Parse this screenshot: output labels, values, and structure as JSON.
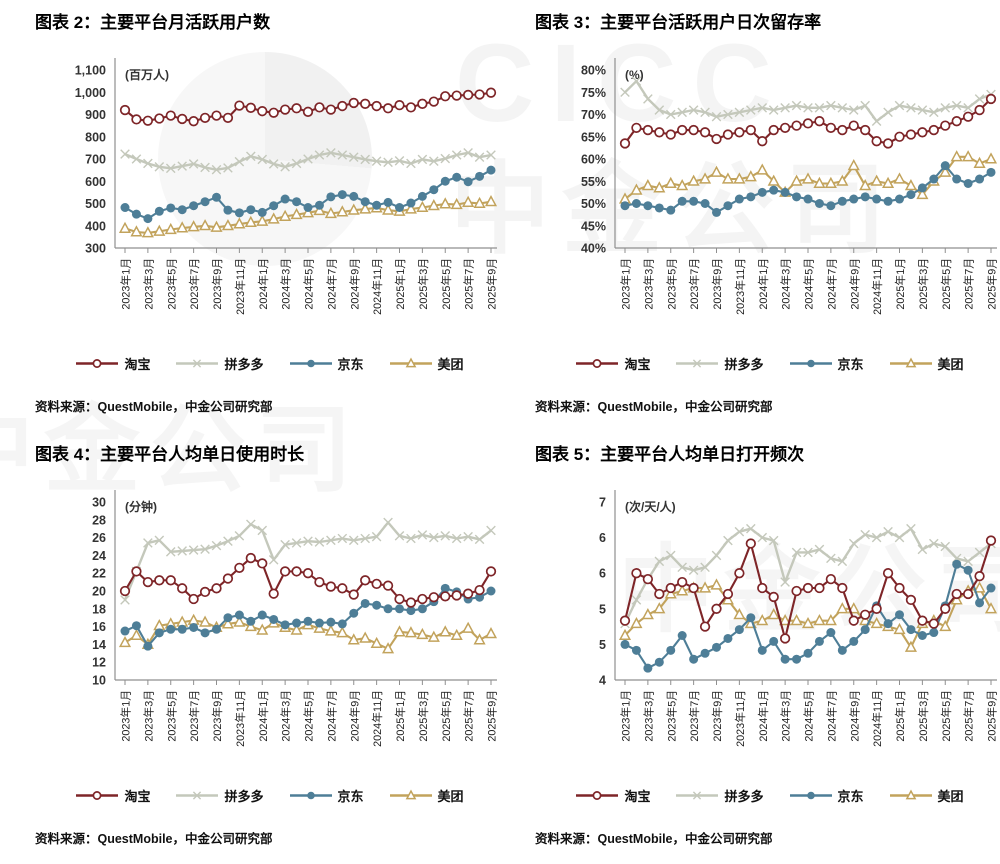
{
  "watermark": {
    "cicc": "CICC",
    "cn": "中金公司",
    "cn2": "中金公司",
    "cn3": "中金公司"
  },
  "source_note": "资料来源：QuestMobile，中金公司研究部",
  "chart_data": [
    {
      "type": "line",
      "title": "图表 2：主要平台月活跃用户数",
      "unit": "(百万人)",
      "source": "资料来源：QuestMobile，中金公司研究部",
      "ylim": [
        300,
        1100
      ],
      "grid": false,
      "legend_position": "bottom",
      "n_points": 33,
      "x_range": "2023年1月 - 2025年9月 (monthly)",
      "x_tick_labels": [
        "2023年1月",
        "2023年3月",
        "2023年5月",
        "2023年7月",
        "2023年9月",
        "2023年11月",
        "2024年1月",
        "2024年3月",
        "2024年5月",
        "2024年7月",
        "2024年9月",
        "2024年11月",
        "2025年1月",
        "2025年3月",
        "2025年5月",
        "2025年7月",
        "2025年9月"
      ],
      "yticks": [
        {
          "v": 300,
          "label": "300"
        },
        {
          "v": 400,
          "label": "400"
        },
        {
          "v": 500,
          "label": "500"
        },
        {
          "v": 600,
          "label": "600"
        },
        {
          "v": 700,
          "label": "700"
        },
        {
          "v": 800,
          "label": "800"
        },
        {
          "v": 900,
          "label": "900"
        },
        {
          "v": 1000,
          "label": "1,000"
        },
        {
          "v": 1100,
          "label": "1,100"
        }
      ],
      "series": [
        {
          "key": "taobao",
          "name": "淘宝",
          "color": "#7E2528",
          "marker": "circle-open",
          "values": [
            920,
            878,
            872,
            882,
            895,
            880,
            870,
            885,
            895,
            885,
            940,
            930,
            915,
            908,
            922,
            928,
            912,
            932,
            922,
            938,
            952,
            948,
            938,
            928,
            942,
            932,
            948,
            958,
            982,
            985,
            988,
            990,
            998
          ]
        },
        {
          "key": "pdd",
          "name": "拼多多",
          "color": "#C4C8BB",
          "marker": "x",
          "values": [
            722,
            700,
            680,
            665,
            658,
            668,
            678,
            662,
            652,
            660,
            688,
            712,
            698,
            678,
            665,
            680,
            700,
            718,
            728,
            718,
            708,
            698,
            690,
            685,
            692,
            680,
            698,
            690,
            702,
            718,
            728,
            708,
            718
          ]
        },
        {
          "key": "jd",
          "name": "京东",
          "color": "#4E7E97",
          "marker": "circle-filled",
          "values": [
            482,
            452,
            432,
            465,
            480,
            472,
            490,
            508,
            528,
            470,
            458,
            472,
            460,
            490,
            520,
            508,
            482,
            492,
            530,
            540,
            532,
            508,
            492,
            505,
            482,
            502,
            532,
            562,
            600,
            618,
            598,
            622,
            650
          ]
        },
        {
          "key": "meituan",
          "name": "美团",
          "color": "#C2A35C",
          "marker": "triangle-open",
          "values": [
            388,
            372,
            368,
            375,
            383,
            390,
            395,
            400,
            393,
            400,
            408,
            415,
            420,
            430,
            442,
            450,
            458,
            468,
            455,
            462,
            470,
            475,
            480,
            470,
            465,
            475,
            482,
            490,
            498,
            495,
            505,
            500,
            508
          ]
        }
      ]
    },
    {
      "type": "line",
      "title": "图表 3：主要平台活跃用户日次留存率",
      "unit": "(%)",
      "source": "资料来源：QuestMobile，中金公司研究部",
      "ylim": [
        40,
        80
      ],
      "grid": false,
      "legend_position": "bottom",
      "n_points": 33,
      "x_range": "2023年1月 - 2025年9月 (monthly)",
      "x_tick_labels": [
        "2023年1月",
        "2023年3月",
        "2023年5月",
        "2023年7月",
        "2023年9月",
        "2023年11月",
        "2024年1月",
        "2024年3月",
        "2024年5月",
        "2024年7月",
        "2024年9月",
        "2024年11月",
        "2025年1月",
        "2025年3月",
        "2025年5月",
        "2025年7月",
        "2025年9月"
      ],
      "yticks": [
        {
          "v": 40,
          "label": "40%"
        },
        {
          "v": 45,
          "label": "45%"
        },
        {
          "v": 50,
          "label": "50%"
        },
        {
          "v": 55,
          "label": "55%"
        },
        {
          "v": 60,
          "label": "60%"
        },
        {
          "v": 65,
          "label": "65%"
        },
        {
          "v": 70,
          "label": "70%"
        },
        {
          "v": 75,
          "label": "75%"
        },
        {
          "v": 80,
          "label": "80%"
        }
      ],
      "series": [
        {
          "key": "taobao",
          "name": "淘宝",
          "color": "#7E2528",
          "marker": "circle-open",
          "values": [
            63.5,
            67,
            66.5,
            66,
            65.5,
            66.5,
            66.5,
            66,
            64.5,
            65.5,
            66,
            66.5,
            64,
            66.5,
            67,
            67.5,
            68,
            68.5,
            67,
            66.5,
            67.5,
            66.5,
            64,
            63.5,
            65,
            65.5,
            66,
            66.5,
            67.5,
            68.5,
            69.5,
            71,
            73.5
          ]
        },
        {
          "key": "pdd",
          "name": "拼多多",
          "color": "#C4C8BB",
          "marker": "x",
          "values": [
            75,
            77.5,
            73.5,
            71,
            70,
            70.5,
            71,
            70.5,
            69.5,
            70,
            70.5,
            71,
            71.5,
            71,
            71.5,
            72,
            71.5,
            71.5,
            72,
            71.5,
            71,
            72,
            68.5,
            70.5,
            72,
            71.5,
            71,
            70.5,
            71.5,
            72,
            71.5,
            73.5,
            74.5
          ]
        },
        {
          "key": "jd",
          "name": "京东",
          "color": "#4E7E97",
          "marker": "circle-filled",
          "values": [
            49.5,
            50,
            49.5,
            49,
            48.5,
            50.5,
            50.5,
            50,
            48,
            49.5,
            51,
            51.5,
            52.5,
            53,
            52.5,
            51.5,
            51,
            50,
            49.5,
            50.5,
            51,
            51.5,
            51,
            50.5,
            51,
            52,
            53.5,
            55.5,
            58.5,
            55.5,
            54.5,
            55.5,
            57
          ]
        },
        {
          "key": "meituan",
          "name": "美团",
          "color": "#C2A35C",
          "marker": "triangle-open",
          "values": [
            51,
            53,
            54,
            53.5,
            54.5,
            54,
            55,
            55.5,
            57,
            55.5,
            55.5,
            56,
            57.5,
            55,
            52.5,
            55,
            55.5,
            54.5,
            54.5,
            55,
            58.5,
            54,
            55,
            54.5,
            55.5,
            54,
            52,
            55,
            57,
            60.5,
            60.5,
            59,
            60
          ]
        }
      ]
    },
    {
      "type": "line",
      "title": "图表 4：主要平台人均单日使用时长",
      "unit": "(分钟)",
      "source": "资料来源：QuestMobile，中金公司研究部",
      "ylim": [
        10,
        30
      ],
      "grid": false,
      "legend_position": "bottom",
      "n_points": 33,
      "x_range": "2023年1月 - 2025年9月 (monthly)",
      "x_tick_labels": [
        "2023年1月",
        "2023年3月",
        "2023年5月",
        "2023年7月",
        "2023年9月",
        "2023年11月",
        "2024年1月",
        "2024年3月",
        "2024年5月",
        "2024年7月",
        "2024年9月",
        "2024年11月",
        "2025年1月",
        "2025年3月",
        "2025年5月",
        "2025年7月",
        "2025年9月"
      ],
      "yticks": [
        {
          "v": 10,
          "label": "10"
        },
        {
          "v": 12,
          "label": "12"
        },
        {
          "v": 14,
          "label": "14"
        },
        {
          "v": 16,
          "label": "16"
        },
        {
          "v": 18,
          "label": "18"
        },
        {
          "v": 20,
          "label": "20"
        },
        {
          "v": 22,
          "label": "22"
        },
        {
          "v": 24,
          "label": "24"
        },
        {
          "v": 26,
          "label": "26"
        },
        {
          "v": 28,
          "label": "28"
        },
        {
          "v": 30,
          "label": "30"
        }
      ],
      "series": [
        {
          "key": "taobao",
          "name": "淘宝",
          "color": "#7E2528",
          "marker": "circle-open",
          "values": [
            20,
            22.2,
            21,
            21.2,
            21.2,
            20.3,
            19.1,
            19.9,
            20.3,
            21.4,
            22.6,
            23.7,
            23.1,
            19.7,
            22.2,
            22.2,
            22,
            21,
            20.5,
            20.3,
            19.6,
            21.2,
            20.8,
            20.6,
            19.1,
            18.7,
            19.1,
            19.3,
            19.4,
            19.5,
            19.7,
            20.1,
            22.2
          ]
        },
        {
          "key": "pdd",
          "name": "拼多多",
          "color": "#C4C8BB",
          "marker": "x",
          "values": [
            19,
            22.2,
            25.4,
            25.7,
            24.4,
            24.5,
            24.6,
            24.7,
            25.1,
            25.6,
            26.2,
            27.5,
            26.8,
            23.5,
            25.2,
            25.4,
            25.6,
            25.5,
            25.7,
            25.9,
            25.7,
            25.9,
            26.1,
            27.7,
            26.2,
            25.9,
            26.3,
            26,
            26.2,
            25.9,
            26.1,
            25.8,
            26.8
          ]
        },
        {
          "key": "jd",
          "name": "京东",
          "color": "#4E7E97",
          "marker": "circle-filled",
          "values": [
            15.5,
            16.1,
            13.8,
            15.3,
            15.7,
            15.7,
            15.9,
            15.3,
            15.7,
            17,
            17.3,
            16.6,
            17.3,
            16.8,
            16.2,
            16.4,
            16.6,
            16.4,
            16.5,
            16.3,
            17.5,
            18.6,
            18.4,
            18,
            18,
            17.8,
            18,
            18.8,
            20.3,
            19.9,
            19.1,
            19.3,
            20
          ]
        },
        {
          "key": "meituan",
          "name": "美团",
          "color": "#C2A35C",
          "marker": "triangle-open",
          "values": [
            14.2,
            15,
            14,
            16.1,
            16.3,
            16.5,
            16.7,
            16.5,
            15.9,
            16.3,
            16.5,
            16,
            15.6,
            16.4,
            15.9,
            15.6,
            16.2,
            15.8,
            15.5,
            15.3,
            14.5,
            14.7,
            14.1,
            13.5,
            15.4,
            15.3,
            15.1,
            14.8,
            15.4,
            15,
            15.8,
            14.5,
            15.2
          ]
        }
      ]
    },
    {
      "type": "line",
      "title": "图表 5：主要平台人均单日打开频次",
      "unit": "(次/天/人)",
      "source": "资料来源：QuestMobile，中金公司研究部",
      "ylim": [
        4,
        7
      ],
      "grid": false,
      "legend_position": "bottom",
      "n_points": 33,
      "x_range": "2023年1月 - 2025年9月 (monthly)",
      "x_tick_labels": [
        "2023年1月",
        "2023年3月",
        "2023年5月",
        "2023年7月",
        "2023年9月",
        "2023年11月",
        "2024年1月",
        "2024年3月",
        "2024年5月",
        "2024年7月",
        "2024年9月",
        "2024年11月",
        "2025年1月",
        "2025年3月",
        "2025年5月",
        "2025年7月",
        "2025年9月"
      ],
      "yticks": [
        {
          "v": 4,
          "label": "4"
        },
        {
          "v": 4.6,
          "label": "5"
        },
        {
          "v": 5.2,
          "label": "5"
        },
        {
          "v": 5.8,
          "label": "6"
        },
        {
          "v": 6.4,
          "label": "6"
        },
        {
          "v": 7,
          "label": "7"
        }
      ],
      "series": [
        {
          "key": "taobao",
          "name": "淘宝",
          "color": "#7E2528",
          "marker": "circle-open",
          "values": [
            5,
            5.8,
            5.7,
            5.45,
            5.55,
            5.65,
            5.55,
            4.9,
            5.2,
            5.45,
            5.8,
            6.3,
            5.55,
            5.4,
            4.7,
            5.5,
            5.55,
            5.55,
            5.7,
            5.55,
            5,
            5.1,
            5.2,
            5.8,
            5.55,
            5.35,
            5,
            4.95,
            5.2,
            5.45,
            5.45,
            5.75,
            6.35
          ]
        },
        {
          "key": "pdd",
          "name": "拼多多",
          "color": "#C4C8BB",
          "marker": "x",
          "values": [
            4.95,
            5.35,
            5.7,
            6,
            6.1,
            5.9,
            5.85,
            5.9,
            6.1,
            6.35,
            6.5,
            6.55,
            6.4,
            6.35,
            5.65,
            6.15,
            6.15,
            6.2,
            6.05,
            6,
            6.3,
            6.45,
            6.4,
            6.5,
            6.4,
            6.55,
            6.2,
            6.3,
            6.25,
            6.05,
            6,
            6.15,
            6.3
          ]
        },
        {
          "key": "jd",
          "name": "京东",
          "color": "#4E7E97",
          "marker": "circle-filled",
          "values": [
            4.6,
            4.5,
            4.2,
            4.3,
            4.5,
            4.75,
            4.35,
            4.45,
            4.55,
            4.7,
            4.85,
            5.05,
            4.5,
            4.65,
            4.35,
            4.35,
            4.45,
            4.65,
            4.8,
            4.5,
            4.65,
            4.85,
            5.25,
            4.95,
            5.1,
            4.85,
            4.75,
            4.8,
            5.25,
            5.95,
            5.85,
            5.3,
            5.55
          ]
        },
        {
          "key": "meituan",
          "name": "美团",
          "color": "#C2A35C",
          "marker": "triangle-open",
          "values": [
            4.75,
            4.95,
            5.1,
            5.2,
            5.45,
            5.5,
            5.55,
            5.55,
            5.6,
            5.35,
            5.1,
            4.95,
            5,
            5.1,
            5,
            5,
            4.95,
            5,
            5,
            5.2,
            5.2,
            5,
            4.95,
            4.9,
            4.85,
            4.55,
            4.95,
            5,
            4.9,
            5.35,
            5.5,
            5.55,
            5.2
          ]
        }
      ]
    }
  ]
}
